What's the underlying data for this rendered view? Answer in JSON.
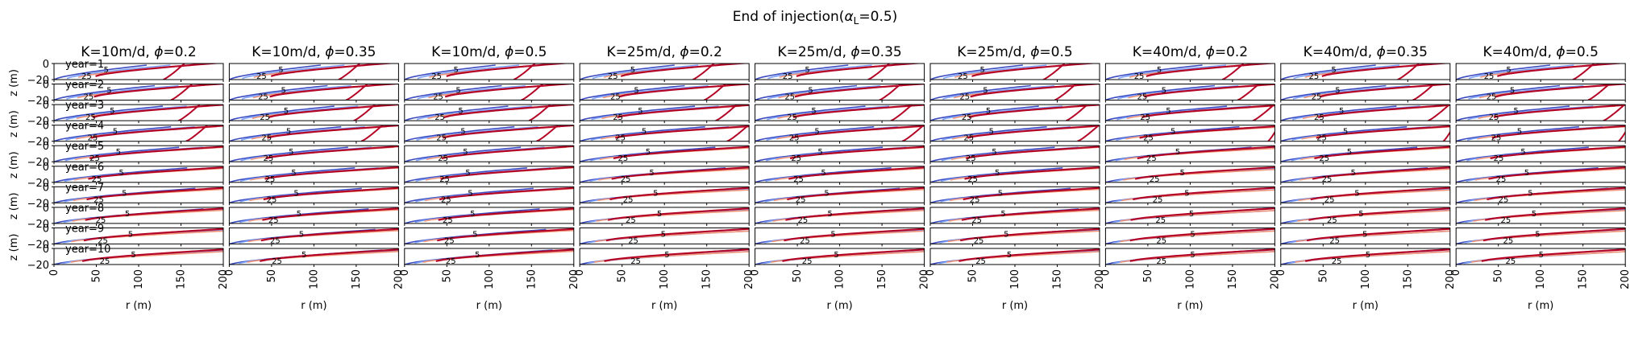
{
  "figure": {
    "suptitle_prefix": "End of injection(",
    "suptitle_alpha": "α",
    "suptitle_sub": "L",
    "suptitle_suffix": "=0.5)"
  },
  "chart_data": {
    "type": "contour",
    "columns": [
      {
        "title_prefix": "K=10m/d, ",
        "phi_symbol": "ϕ",
        "title_suffix": "=0.2",
        "K": 10,
        "phi": 0.2
      },
      {
        "title_prefix": "K=10m/d, ",
        "phi_symbol": "ϕ",
        "title_suffix": "=0.35",
        "K": 10,
        "phi": 0.35
      },
      {
        "title_prefix": "K=10m/d, ",
        "phi_symbol": "ϕ",
        "title_suffix": "=0.5",
        "K": 10,
        "phi": 0.5
      },
      {
        "title_prefix": "K=25m/d, ",
        "phi_symbol": "ϕ",
        "title_suffix": "=0.2",
        "K": 25,
        "phi": 0.2
      },
      {
        "title_prefix": "K=25m/d, ",
        "phi_symbol": "ϕ",
        "title_suffix": "=0.35",
        "K": 25,
        "phi": 0.35
      },
      {
        "title_prefix": "K=25m/d, ",
        "phi_symbol": "ϕ",
        "title_suffix": "=0.5",
        "K": 25,
        "phi": 0.5
      },
      {
        "title_prefix": "K=40m/d, ",
        "phi_symbol": "ϕ",
        "title_suffix": "=0.2",
        "K": 40,
        "phi": 0.2
      },
      {
        "title_prefix": "K=40m/d, ",
        "phi_symbol": "ϕ",
        "title_suffix": "=0.35",
        "K": 40,
        "phi": 0.35
      },
      {
        "title_prefix": "K=40m/d, ",
        "phi_symbol": "ϕ",
        "title_suffix": "=0.5",
        "K": 40,
        "phi": 0.5
      }
    ],
    "rows": [
      "year=1",
      "year=2",
      "year=3",
      "year=4",
      "year=5",
      "year=6",
      "year=7",
      "year=8",
      "year=9",
      "year=10"
    ],
    "xlabel": "r (m)",
    "ylabel": "z (m)",
    "xlim": [
      0,
      200
    ],
    "ylim": [
      -20,
      0
    ],
    "xticks": [
      "0",
      "50",
      "100",
      "150",
      "200"
    ],
    "yticks": [
      "0",
      "−20"
    ],
    "contour_labels": [
      "5",
      "25"
    ],
    "contour_colors": [
      "#3b4cc0",
      "#7b9ff9",
      "#f4987a",
      "#b40426"
    ]
  }
}
